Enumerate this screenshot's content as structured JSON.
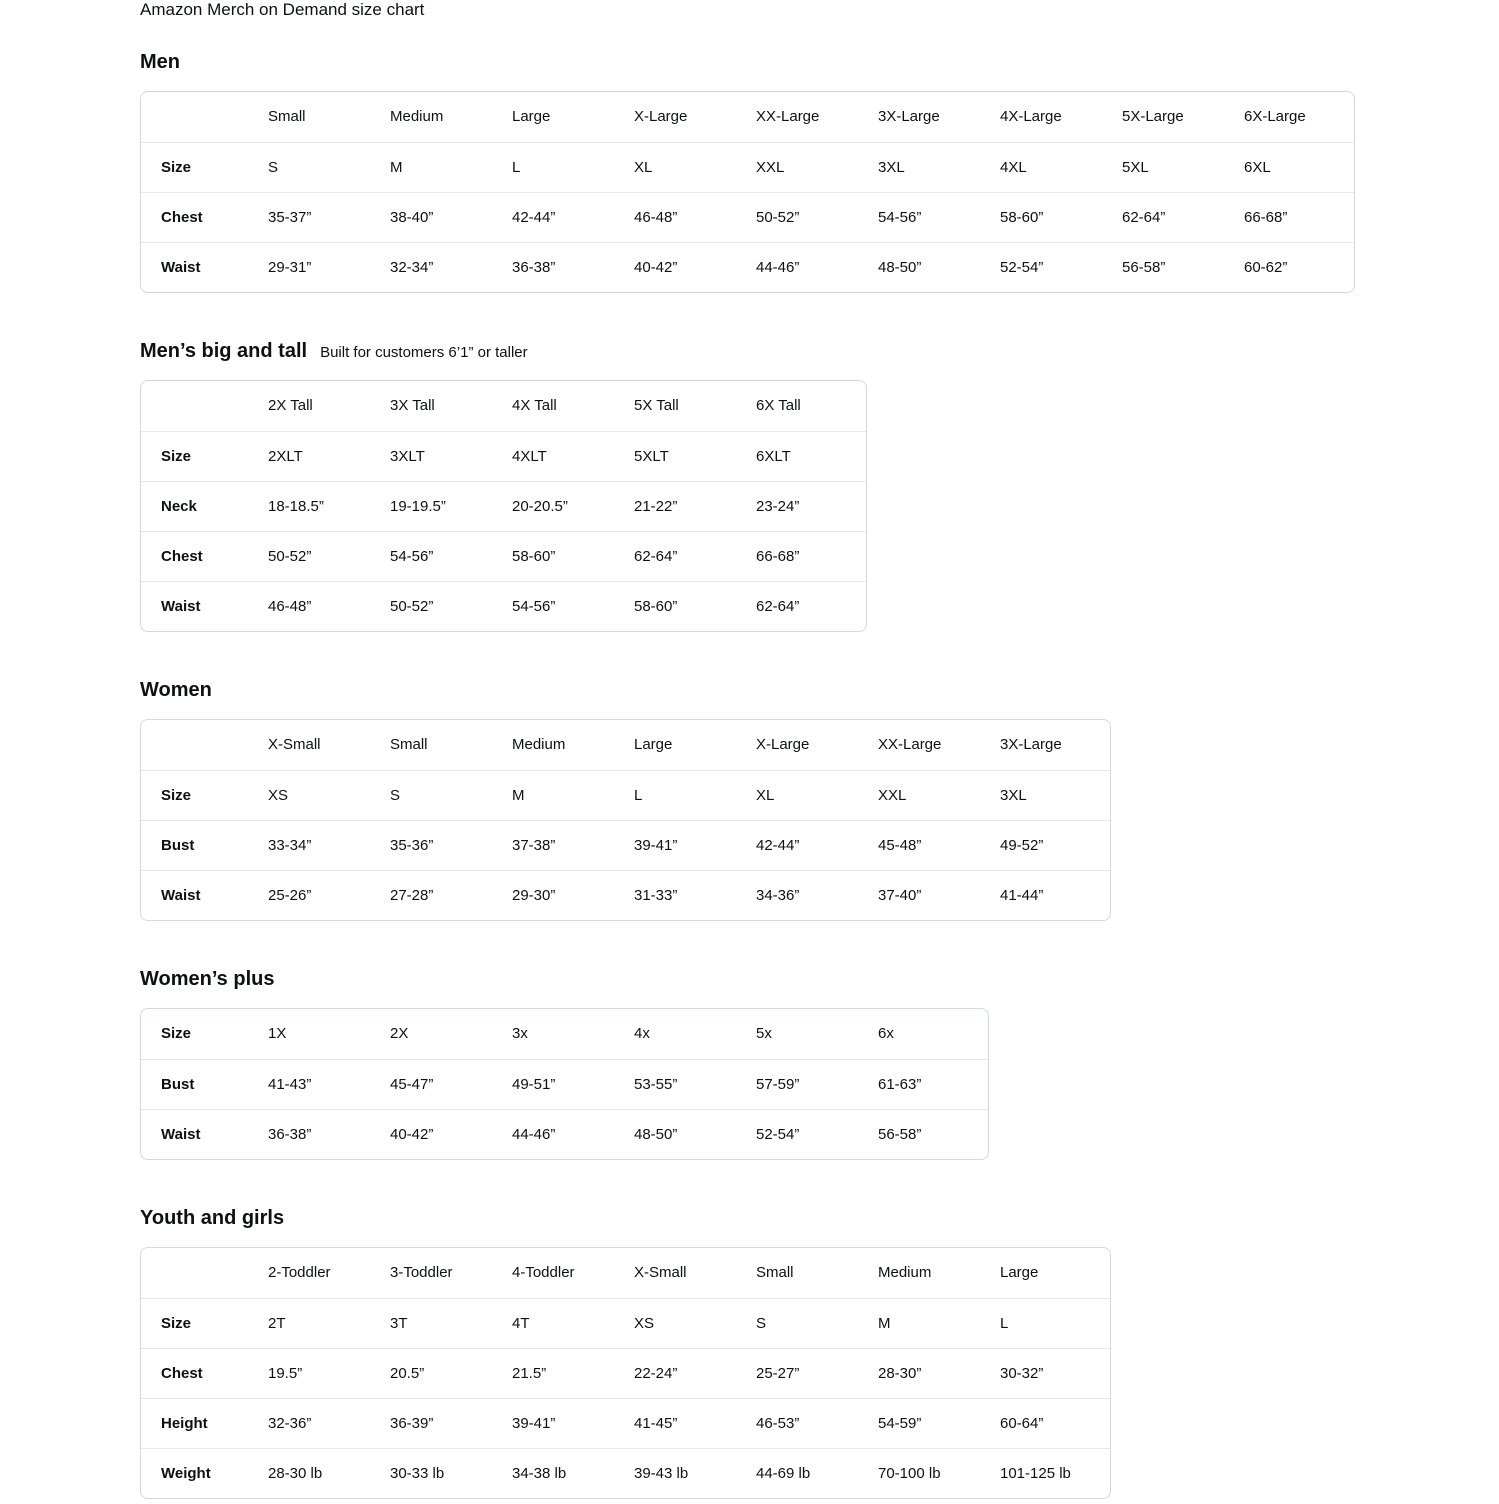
{
  "page": {
    "title": "Amazon Merch on Demand size chart"
  },
  "colors": {
    "text": "#0f1111",
    "table_border": "#d5d9d9",
    "row_divider": "#e7e7e7",
    "background": "#ffffff"
  },
  "sections": [
    {
      "heading": "Men",
      "subtitle": "",
      "columns": [
        "Small",
        "Medium",
        "Large",
        "X-Large",
        "XX-Large",
        "3X-Large",
        "4X-Large",
        "5X-Large",
        "6X-Large"
      ],
      "rows": [
        {
          "label": "Size",
          "values": [
            "S",
            "M",
            "L",
            "XL",
            "XXL",
            "3XL",
            "4XL",
            "5XL",
            "6XL"
          ]
        },
        {
          "label": "Chest",
          "values": [
            "35-37”",
            "38-40”",
            "42-44”",
            "46-48”",
            "50-52”",
            "54-56”",
            "58-60”",
            "62-64”",
            "66-68”"
          ]
        },
        {
          "label": "Waist",
          "values": [
            "29-31”",
            "32-34”",
            "36-38”",
            "40-42”",
            "44-46”",
            "48-50”",
            "52-54”",
            "56-58”",
            "60-62”"
          ]
        }
      ]
    },
    {
      "heading": "Men’s big and tall",
      "subtitle": "Built for customers 6’1” or taller",
      "columns": [
        "2X Tall",
        "3X Tall",
        "4X Tall",
        "5X Tall",
        "6X Tall"
      ],
      "rows": [
        {
          "label": "Size",
          "values": [
            "2XLT",
            "3XLT",
            "4XLT",
            "5XLT",
            "6XLT"
          ]
        },
        {
          "label": "Neck",
          "values": [
            "18-18.5”",
            "19-19.5”",
            "20-20.5”",
            "21-22”",
            "23-24”"
          ]
        },
        {
          "label": "Chest",
          "values": [
            "50-52”",
            "54-56”",
            "58-60”",
            "62-64”",
            "66-68”"
          ]
        },
        {
          "label": "Waist",
          "values": [
            "46-48”",
            "50-52”",
            "54-56”",
            "58-60”",
            "62-64”"
          ]
        }
      ]
    },
    {
      "heading": "Women",
      "subtitle": "",
      "columns": [
        "X-Small",
        "Small",
        "Medium",
        "Large",
        "X-Large",
        "XX-Large",
        "3X-Large"
      ],
      "rows": [
        {
          "label": "Size",
          "values": [
            "XS",
            "S",
            "M",
            "L",
            "XL",
            "XXL",
            "3XL"
          ]
        },
        {
          "label": "Bust",
          "values": [
            "33-34”",
            "35-36”",
            "37-38”",
            "39-41”",
            "42-44”",
            "45-48”",
            "49-52”"
          ]
        },
        {
          "label": "Waist",
          "values": [
            "25-26”",
            "27-28”",
            "29-30”",
            "31-33”",
            "34-36”",
            "37-40”",
            "41-44”"
          ]
        }
      ]
    },
    {
      "heading": "Women’s plus",
      "subtitle": "",
      "columns": [],
      "rows": [
        {
          "label": "Size",
          "values": [
            "1X",
            "2X",
            "3x",
            "4x",
            "5x",
            "6x"
          ]
        },
        {
          "label": "Bust",
          "values": [
            "41-43”",
            "45-47”",
            "49-51”",
            "53-55”",
            "57-59”",
            "61-63”"
          ]
        },
        {
          "label": "Waist",
          "values": [
            "36-38”",
            "40-42”",
            "44-46”",
            "48-50”",
            "52-54”",
            "56-58”"
          ]
        }
      ]
    },
    {
      "heading": "Youth and girls",
      "subtitle": "",
      "columns": [
        "2-Toddler",
        "3-Toddler",
        "4-Toddler",
        "X-Small",
        "Small",
        "Medium",
        "Large"
      ],
      "rows": [
        {
          "label": "Size",
          "values": [
            "2T",
            "3T",
            "4T",
            "XS",
            "S",
            "M",
            "L"
          ]
        },
        {
          "label": "Chest",
          "values": [
            "19.5”",
            "20.5”",
            "21.5”",
            "22-24”",
            "25-27”",
            "28-30”",
            "30-32”"
          ]
        },
        {
          "label": "Height",
          "values": [
            "32-36”",
            "36-39”",
            "39-41”",
            "41-45”",
            "46-53”",
            "54-59”",
            "60-64”"
          ]
        },
        {
          "label": "Weight",
          "values": [
            "28-30 lb",
            "30-33 lb",
            "34-38 lb",
            "39-43 lb",
            "44-69 lb",
            "70-100 lb",
            "101-125 lb"
          ]
        }
      ]
    }
  ]
}
